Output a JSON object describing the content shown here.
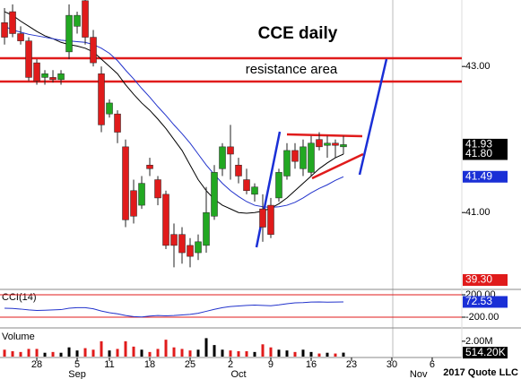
{
  "chart_data": [
    {
      "type": "candlestick",
      "title": "CCE daily",
      "annotation": "resistance area",
      "x": [
        0,
        1,
        2,
        3,
        4,
        5,
        6,
        7,
        8,
        9,
        10,
        11,
        12,
        13,
        14,
        15,
        16,
        17,
        18,
        19,
        20,
        21,
        22,
        23,
        24,
        25,
        26,
        27,
        28,
        29,
        30,
        31,
        32,
        33,
        34,
        35,
        36,
        37,
        38,
        39,
        40,
        41,
        42
      ],
      "open": [
        43.6,
        43.75,
        43.45,
        43.35,
        43.05,
        42.85,
        42.85,
        42.82,
        43.2,
        43.55,
        43.9,
        43.4,
        42.9,
        42.35,
        42.35,
        41.9,
        41.3,
        41.1,
        41.65,
        41.45,
        41.25,
        40.7,
        40.7,
        40.55,
        40.45,
        40.55,
        40.95,
        41.6,
        41.9,
        41.65,
        41.45,
        41.25,
        41.05,
        41.1,
        41.2,
        41.5,
        41.85,
        41.6,
        41.55,
        42.0,
        41.92,
        41.95,
        41.9
      ],
      "high": [
        43.8,
        43.85,
        43.55,
        43.4,
        43.1,
        42.95,
        42.95,
        42.95,
        43.85,
        43.75,
        43.91,
        43.5,
        43.0,
        42.55,
        42.4,
        42.0,
        41.45,
        41.5,
        41.75,
        41.5,
        41.3,
        40.85,
        40.8,
        40.65,
        40.7,
        41.35,
        41.65,
        41.95,
        42.2,
        41.75,
        41.6,
        41.4,
        41.25,
        41.2,
        41.6,
        41.95,
        41.95,
        42.0,
        42.05,
        42.1,
        42.05,
        42.0,
        42.05
      ],
      "low": [
        43.3,
        43.4,
        43.3,
        42.8,
        42.75,
        42.75,
        42.78,
        42.75,
        43.1,
        43.45,
        43.3,
        43.0,
        42.1,
        42.3,
        41.95,
        40.8,
        40.85,
        41.05,
        41.5,
        41.1,
        40.5,
        40.25,
        40.3,
        40.25,
        40.35,
        40.45,
        40.9,
        41.5,
        41.45,
        41.4,
        41.25,
        41.15,
        40.6,
        40.65,
        41.15,
        41.45,
        41.6,
        41.5,
        41.5,
        41.85,
        41.75,
        41.75,
        41.8
      ],
      "close": [
        43.4,
        43.45,
        43.35,
        42.85,
        42.8,
        42.9,
        42.82,
        42.9,
        43.7,
        43.7,
        43.4,
        43.05,
        42.2,
        42.5,
        42.1,
        40.9,
        40.95,
        41.4,
        41.6,
        41.2,
        40.55,
        40.55,
        40.45,
        40.4,
        40.6,
        41.0,
        41.55,
        41.9,
        41.8,
        41.5,
        41.3,
        41.35,
        40.8,
        40.7,
        41.55,
        41.85,
        41.7,
        41.9,
        41.95,
        41.9,
        41.95,
        41.92,
        41.93
      ],
      "up_color": "#22a822",
      "down_color": "#e01b1b",
      "lines": [
        {
          "color": "#000000",
          "values": [
            43.75,
            43.7,
            43.62,
            43.55,
            43.48,
            43.42,
            43.38,
            43.33,
            43.3,
            43.28,
            43.25,
            43.2,
            43.1,
            43.0,
            42.9,
            42.75,
            42.62,
            42.5,
            42.4,
            42.28,
            42.15,
            42.0,
            41.85,
            41.65,
            41.45,
            41.3,
            41.18,
            41.1,
            41.05,
            41.0,
            40.99,
            41.0,
            41.02,
            41.06,
            41.12,
            41.2,
            41.3,
            41.4,
            41.5,
            41.6,
            41.68,
            41.75,
            41.8
          ]
        },
        {
          "color": "#2233cc",
          "values": [
            43.55,
            43.5,
            43.47,
            43.44,
            43.42,
            43.4,
            43.38,
            43.36,
            43.35,
            43.34,
            43.33,
            43.3,
            43.25,
            43.18,
            43.08,
            42.95,
            42.83,
            42.7,
            42.58,
            42.45,
            42.33,
            42.2,
            42.08,
            41.95,
            41.8,
            41.65,
            41.52,
            41.4,
            41.3,
            41.22,
            41.15,
            41.1,
            41.08,
            41.07,
            41.08,
            41.1,
            41.14,
            41.2,
            41.27,
            41.33,
            41.38,
            41.44,
            41.49
          ]
        }
      ],
      "xlim": [
        -0.56,
        56.67
      ],
      "ylim": [
        39.96,
        43.91
      ],
      "yticks": [
        {
          "value": 41,
          "label": "41.00"
        },
        {
          "value": 43,
          "label": "43.00"
        }
      ],
      "price_labels": [
        41.93,
        {
          "value": 41.8,
          "label": "41.80"
        },
        41.49
      ],
      "price_label_colors": [
        "#000000",
        "#000000",
        "#1a2fd6"
      ],
      "bottom_label": {
        "label": "39.30",
        "color": "#e01b1b"
      },
      "xticks": [
        {
          "value": 4,
          "label": "28"
        },
        {
          "value": 9,
          "label": "5"
        },
        {
          "value": 13,
          "label": "11"
        },
        {
          "value": 18,
          "label": "18"
        },
        {
          "value": 23,
          "label": "25"
        },
        {
          "value": 28,
          "label": "2"
        },
        {
          "value": 33,
          "label": "9"
        },
        {
          "value": 38,
          "label": "16"
        },
        {
          "value": 43,
          "label": "23"
        },
        {
          "value": 48,
          "label": "30"
        },
        {
          "value": 53,
          "label": "6"
        }
      ],
      "month_ticks": [
        {
          "value": 9,
          "label": "Sep"
        },
        {
          "value": 29,
          "label": "Oct"
        },
        {
          "value": 51.3,
          "label": "Nov"
        }
      ],
      "credit": "2017 Quote LLC"
    },
    {
      "type": "line",
      "title": "CCI(14)",
      "color": "#2233cc",
      "values": [
        -40,
        -45,
        -55,
        -70,
        -80,
        -75,
        -70,
        -65,
        -40,
        -30,
        -30,
        -50,
        -90,
        -120,
        -140,
        -170,
        -190,
        -195,
        -180,
        -170,
        -175,
        -170,
        -160,
        -150,
        -130,
        -95,
        -60,
        -30,
        -10,
        0,
        10,
        15,
        10,
        5,
        20,
        40,
        55,
        60,
        70,
        72,
        68,
        70,
        72.53
      ],
      "ylim": [
        -360,
        264
      ],
      "yticks": [
        {
          "value": 200,
          "label": "200.00"
        },
        {
          "value": -200,
          "label": "-200.00"
        }
      ],
      "last_label": 72.53,
      "last_label_color": "#1a2fd6"
    },
    {
      "type": "volume",
      "title": "Volume",
      "values": [
        900000,
        700000,
        600000,
        1000000,
        1000000,
        500000,
        600000,
        500000,
        1200000,
        800000,
        1100000,
        900000,
        2000000,
        800000,
        1000000,
        2000000,
        1300000,
        900000,
        600000,
        1000000,
        2200000,
        1200000,
        1000000,
        800000,
        900000,
        2400000,
        1500000,
        900000,
        800000,
        700000,
        700000,
        600000,
        1600000,
        1200000,
        900000,
        800000,
        600000,
        900000,
        600000,
        400000,
        500000,
        400000,
        514200
      ],
      "up_color": "#000000",
      "down_color": "#e01b1b",
      "ylim": [
        0,
        3500000
      ],
      "yticks": [
        {
          "value": 2000000,
          "label": "2.00M"
        }
      ],
      "last_label": {
        "value": 514200,
        "label": "514.20K"
      },
      "last_label_color": "#000000"
    }
  ]
}
